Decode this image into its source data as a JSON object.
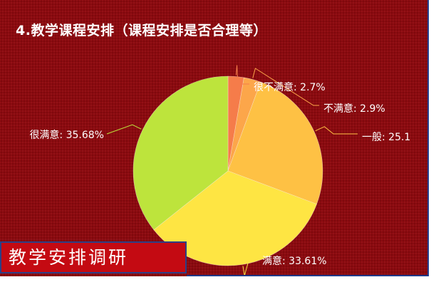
{
  "slide": {
    "title": "4.教学课程安排（课程安排是否合理等）",
    "footer_badge": "教学安排调研"
  },
  "chart_data": {
    "type": "pie",
    "title": "",
    "slices": [
      {
        "label": "很不满意",
        "value": 2.7,
        "text": "很不满意: 2.7%",
        "color": "#f57c4a",
        "line": "#f57c4a"
      },
      {
        "label": "不满意",
        "value": 2.9,
        "text": "不满意: 2.9%",
        "color": "#fca64a",
        "line": "#fca64a"
      },
      {
        "label": "一般",
        "value": 25.1,
        "text": "一般: 25.1",
        "color": "#fec144",
        "line": "#fec144"
      },
      {
        "label": "满意",
        "value": 33.61,
        "text": "满意: 33.61%",
        "color": "#fee543",
        "line": "#fee543"
      },
      {
        "label": "很满意",
        "value": 35.68,
        "text": "很满意: 35.68%",
        "color": "#bde43c",
        "line": "#bde43c"
      }
    ]
  }
}
